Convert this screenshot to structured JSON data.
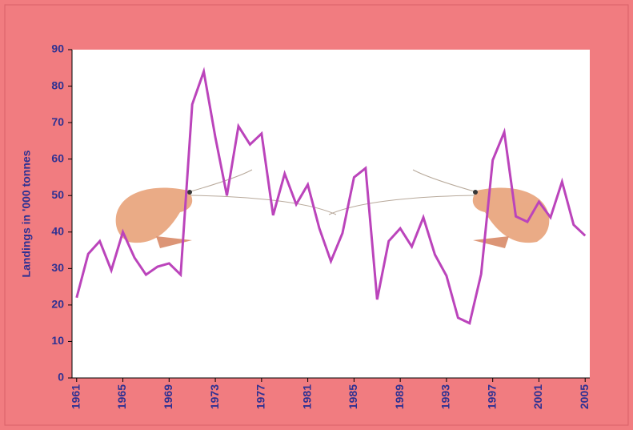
{
  "chart_data": {
    "type": "line",
    "y_label": "Landings in '000 tonnes",
    "x": [
      1961,
      1962,
      1963,
      1964,
      1965,
      1966,
      1967,
      1968,
      1969,
      1970,
      1971,
      1972,
      1973,
      1974,
      1975,
      1976,
      1977,
      1978,
      1979,
      1980,
      1981,
      1982,
      1983,
      1984,
      1985,
      1986,
      1987,
      1988,
      1989,
      1990,
      1991,
      1992,
      1993,
      1994,
      1995,
      1996,
      1997,
      1998,
      1999,
      2000,
      2001,
      2002,
      2003,
      2004,
      2005
    ],
    "series": [
      {
        "color": "#bb44bb",
        "values": [
          22,
          34,
          37.5,
          29.5,
          40,
          33,
          28.3,
          30.5,
          31.4,
          28.3,
          75,
          84,
          66,
          50,
          69,
          64,
          67,
          44.6,
          56,
          47.6,
          53,
          41,
          32,
          39.7,
          55,
          57.5,
          21.5,
          37.5,
          41,
          36,
          44,
          33.8,
          28,
          16.5,
          15,
          28.5,
          59.7,
          67.4,
          44.3,
          42.8,
          48.3,
          44,
          53.8,
          42,
          39
        ]
      }
    ],
    "xlim": [
      1960.6,
      2005.4
    ],
    "xticks": [
      1961,
      1965,
      1969,
      1973,
      1977,
      1981,
      1985,
      1989,
      1993,
      1997,
      2001,
      2005
    ],
    "ylim": [
      0,
      90
    ],
    "yticks": [
      0,
      10,
      20,
      30,
      40,
      50,
      60,
      70,
      80,
      90
    ]
  }
}
